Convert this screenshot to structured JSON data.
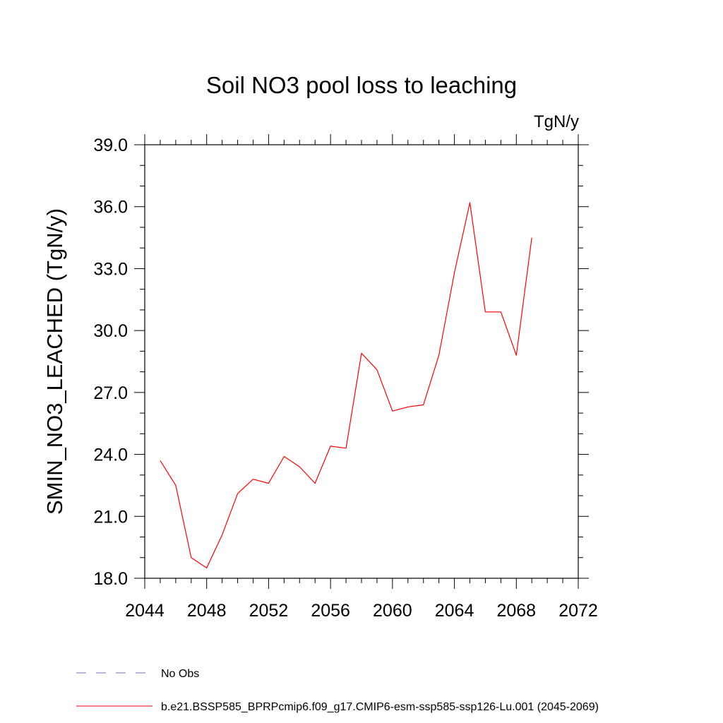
{
  "chart_data": {
    "type": "line",
    "title": "Soil NO3 pool loss to leaching",
    "units_label": "TgN/y",
    "xlabel": "",
    "ylabel": "SMIN_NO3_LEACHED  (TgN/y)",
    "xlim": [
      2044,
      2072
    ],
    "ylim": [
      18.0,
      39.0
    ],
    "x_major_ticks": [
      2044,
      2048,
      2052,
      2056,
      2060,
      2064,
      2068,
      2072
    ],
    "x_tick_labels": [
      "2044",
      "2048",
      "2052",
      "2056",
      "2060",
      "2064",
      "2068",
      "2072"
    ],
    "y_major_ticks": [
      18,
      21,
      24,
      27,
      30,
      33,
      36,
      39
    ],
    "y_tick_labels": [
      "18.0",
      "21.0",
      "24.0",
      "27.0",
      "30.0",
      "33.0",
      "36.0",
      "39.0"
    ],
    "grid": false,
    "legend_position": "bottom-left",
    "series": [
      {
        "name": "b.e21.BSSP585_BPRPcmip6.f09_g17.CMIP6-esm-ssp585-ssp126-Lu.001 (2045-2069)",
        "color": "#ff0000",
        "x": [
          2045,
          2046,
          2047,
          2048,
          2049,
          2050,
          2051,
          2052,
          2053,
          2054,
          2055,
          2056,
          2057,
          2058,
          2059,
          2060,
          2061,
          2062,
          2063,
          2064,
          2065,
          2066,
          2067,
          2068,
          2069
        ],
        "y": [
          23.7,
          22.5,
          19.0,
          18.5,
          20.1,
          22.1,
          22.8,
          22.6,
          23.9,
          23.4,
          22.6,
          24.4,
          24.3,
          28.9,
          28.1,
          26.1,
          26.3,
          26.4,
          28.8,
          32.8,
          36.2,
          30.9,
          30.9,
          28.8,
          34.5
        ]
      }
    ],
    "legend": [
      {
        "label": "No Obs",
        "color": "#7b68b0",
        "dash": "dashed"
      },
      {
        "label": "b.e21.BSSP585_BPRPcmip6.f09_g17.CMIP6-esm-ssp585-ssp126-Lu.001 (2045-2069)",
        "color": "#ff0000",
        "dash": "solid"
      }
    ]
  }
}
